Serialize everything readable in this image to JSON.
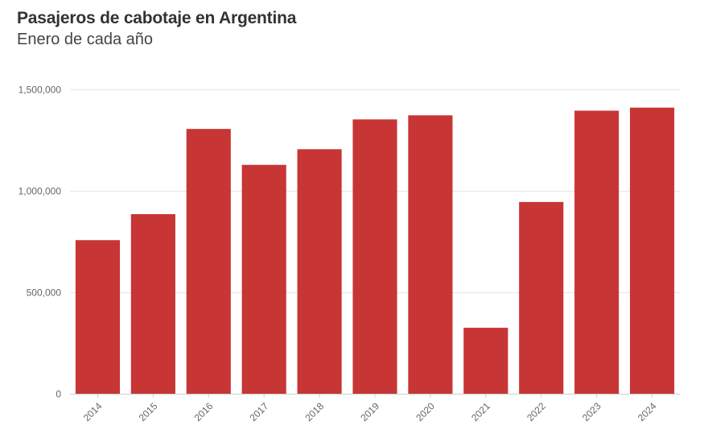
{
  "chart_data": {
    "type": "bar",
    "title": "Pasajeros de cabotaje en Argentina",
    "subtitle": "Enero de cada año",
    "xlabel": "",
    "ylabel": "",
    "categories": [
      "2014",
      "2015",
      "2016",
      "2017",
      "2018",
      "2019",
      "2020",
      "2021",
      "2022",
      "2023",
      "2024"
    ],
    "values": [
      757000,
      885000,
      1305000,
      1128000,
      1205000,
      1352000,
      1372000,
      325000,
      945000,
      1395000,
      1410000
    ],
    "ylim": [
      0,
      1500000
    ],
    "yticks": [
      0,
      500000,
      1000000,
      1500000
    ],
    "ytick_labels": [
      "0",
      "500,000",
      "1,000,000",
      "1,500,000"
    ],
    "bar_color": "#c73535",
    "grid": true,
    "legend": "none"
  }
}
